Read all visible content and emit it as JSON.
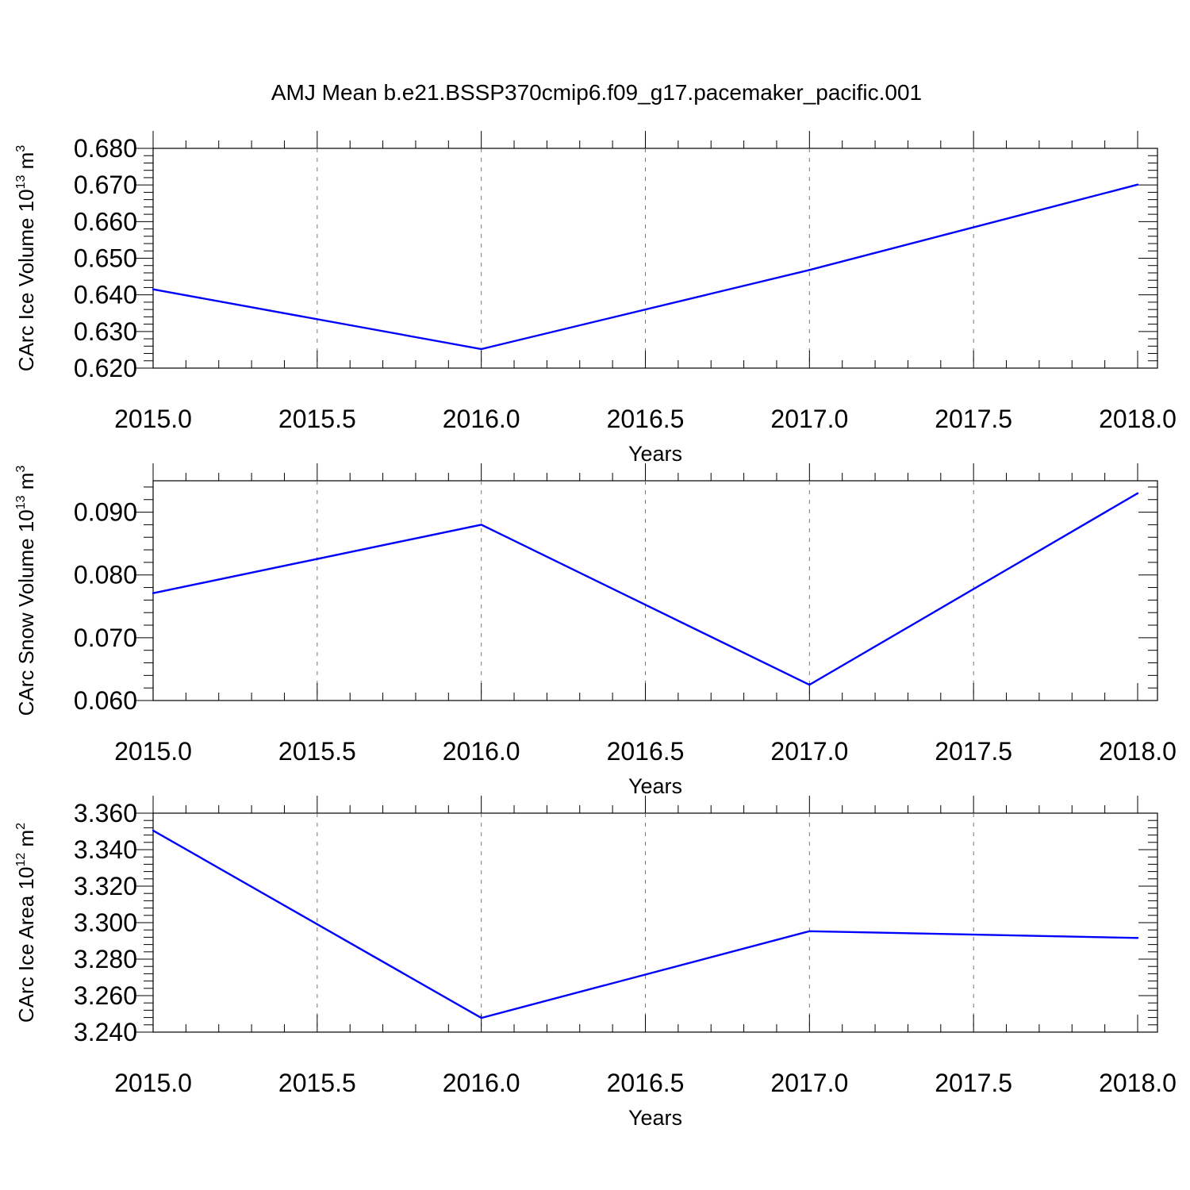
{
  "title": "AMJ Mean b.e21.BSSP370cmip6.f09_g17.pacemaker_pacific.001",
  "series_color": "#0000ff",
  "chart_data": [
    {
      "type": "line",
      "ylabel": "CArc Ice Volume 10",
      "ylabel_sup": "13",
      "ylabel_unit": "m",
      "ylabel_unit_sup": "3",
      "xlabel": "Years",
      "x": [
        2015,
        2016,
        2017,
        2018
      ],
      "values": [
        0.6415,
        0.6252,
        0.6468,
        0.6701
      ],
      "xlim": [
        2015,
        2018
      ],
      "ylim": [
        0.62,
        0.68
      ],
      "xticks": [
        2015.0,
        2015.5,
        2016.0,
        2016.5,
        2017.0,
        2017.5,
        2018.0
      ],
      "xtick_labels": [
        "2015.0",
        "2015.5",
        "2016.0",
        "2016.5",
        "2017.0",
        "2017.5",
        "2018.0"
      ],
      "yticks": [
        0.62,
        0.63,
        0.64,
        0.65,
        0.66,
        0.67,
        0.68
      ],
      "ytick_labels": [
        "0.620",
        "0.630",
        "0.640",
        "0.650",
        "0.660",
        "0.670",
        "0.680"
      ],
      "grid": "vertical dashed"
    },
    {
      "type": "line",
      "ylabel": "CArc Snow Volume 10",
      "ylabel_sup": "13",
      "ylabel_unit": "m",
      "ylabel_unit_sup": "3",
      "xlabel": "Years",
      "x": [
        2015,
        2016,
        2017,
        2018
      ],
      "values": [
        0.0771,
        0.088,
        0.0625,
        0.093
      ],
      "xlim": [
        2015,
        2018
      ],
      "ylim": [
        0.06,
        0.095
      ],
      "xticks": [
        2015.0,
        2015.5,
        2016.0,
        2016.5,
        2017.0,
        2017.5,
        2018.0
      ],
      "xtick_labels": [
        "2015.0",
        "2015.5",
        "2016.0",
        "2016.5",
        "2017.0",
        "2017.5",
        "2018.0"
      ],
      "yticks": [
        0.06,
        0.07,
        0.08,
        0.09
      ],
      "ytick_labels": [
        "0.060",
        "0.070",
        "0.080",
        "0.090"
      ],
      "grid": "vertical dashed"
    },
    {
      "type": "line",
      "ylabel": "CArc Ice Area 10",
      "ylabel_sup": "12",
      "ylabel_unit": "m",
      "ylabel_unit_sup": "2",
      "xlabel": "Years",
      "x": [
        2015,
        2016,
        2017,
        2018
      ],
      "values": [
        3.3505,
        3.2478,
        3.2953,
        3.2916
      ],
      "xlim": [
        2015,
        2018
      ],
      "ylim": [
        3.24,
        3.36
      ],
      "xticks": [
        2015.0,
        2015.5,
        2016.0,
        2016.5,
        2017.0,
        2017.5,
        2018.0
      ],
      "xtick_labels": [
        "2015.0",
        "2015.5",
        "2016.0",
        "2016.5",
        "2017.0",
        "2017.5",
        "2018.0"
      ],
      "yticks": [
        3.24,
        3.26,
        3.28,
        3.3,
        3.32,
        3.34,
        3.36
      ],
      "ytick_labels": [
        "3.240",
        "3.260",
        "3.280",
        "3.300",
        "3.320",
        "3.340",
        "3.360"
      ],
      "grid": "vertical dashed"
    }
  ]
}
